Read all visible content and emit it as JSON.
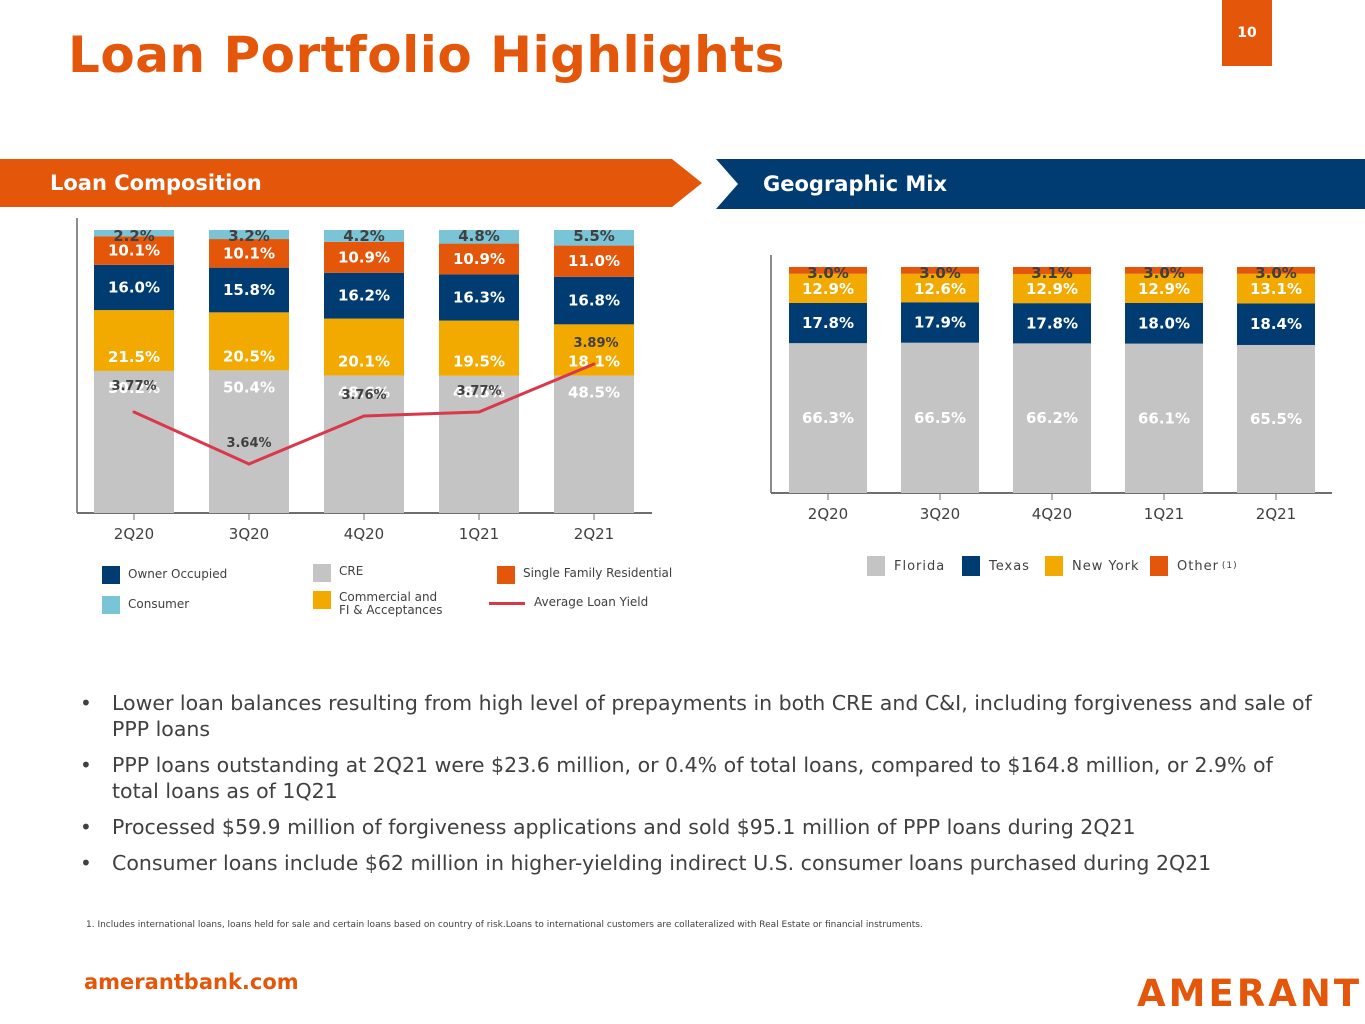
{
  "page": {
    "title": "Loan Portfolio Highlights",
    "page_number": "10",
    "website": "amerantbank.com",
    "logo_text": "AMERANT",
    "colors": {
      "brand_orange": "#E4570B",
      "brand_navy": "#003C71",
      "cre_gray": "#C4C4C4",
      "commercial_gold": "#F2A900",
      "consumer_blue": "#7AC4D7",
      "yield_red": "#D9384B"
    }
  },
  "sections": {
    "left_title": "Loan Composition",
    "right_title": "Geographic Mix"
  },
  "loan_legend": [
    {
      "label": "Owner Occupied",
      "color": "#003C71",
      "kind": "swatch"
    },
    {
      "label": "CRE",
      "color": "#C4C4C4",
      "kind": "swatch"
    },
    {
      "label": "Single Family Residential",
      "color": "#E4570B",
      "kind": "swatch"
    },
    {
      "label": "Consumer",
      "color": "#7AC4D7",
      "kind": "swatch"
    },
    {
      "label": "Commercial and FI & Acceptances",
      "color": "#F2A900",
      "kind": "swatch"
    },
    {
      "label": "Average Loan Yield",
      "color": "#D9384B",
      "kind": "line"
    }
  ],
  "geo_legend": [
    {
      "label": "Florida",
      "color": "#C4C4C4"
    },
    {
      "label": "Texas",
      "color": "#003C71"
    },
    {
      "label": "New York",
      "color": "#F2A900"
    },
    {
      "label": "Other",
      "color": "#E4570B",
      "note": "(1)"
    }
  ],
  "chart_data": [
    {
      "type": "bar",
      "stacked": true,
      "title": "Loan Composition",
      "categories": [
        "2Q20",
        "3Q20",
        "4Q20",
        "1Q21",
        "2Q21"
      ],
      "xlabel": "",
      "ylabel": "",
      "ylim": [
        0,
        100
      ],
      "grid": false,
      "series": [
        {
          "name": "CRE",
          "color": "#C4C4C4",
          "label_color": "#FFFFFF",
          "values": [
            50.2,
            50.4,
            48.6,
            48.5,
            48.5
          ],
          "labels": [
            "50.2%",
            "50.4%",
            "48.6%",
            "48.5%",
            "48.5%"
          ]
        },
        {
          "name": "Commercial and FI & Acceptances",
          "color": "#F2A900",
          "label_color": "#FFFFFF",
          "values": [
            21.5,
            20.5,
            20.1,
            19.5,
            18.1
          ],
          "labels": [
            "21.5%",
            "20.5%",
            "20.1%",
            "19.5%",
            "18.1%"
          ]
        },
        {
          "name": "Owner Occupied",
          "color": "#003C71",
          "label_color": "#FFFFFF",
          "values": [
            16.0,
            15.8,
            16.2,
            16.3,
            16.8
          ],
          "labels": [
            "16.0%",
            "15.8%",
            "16.2%",
            "16.3%",
            "16.8%"
          ]
        },
        {
          "name": "Single Family Residential",
          "color": "#E4570B",
          "label_color": "#FFFFFF",
          "values": [
            10.1,
            10.1,
            10.9,
            10.9,
            11.0
          ],
          "labels": [
            "10.1%",
            "10.1%",
            "10.9%",
            "10.9%",
            "11.0%"
          ]
        },
        {
          "name": "Consumer",
          "color": "#7AC4D7",
          "label_color": "#404040",
          "values": [
            2.2,
            3.2,
            4.2,
            4.8,
            5.5
          ],
          "labels": [
            "2.2%",
            "3.2%",
            "4.2%",
            "4.8%",
            "5.5%"
          ]
        }
      ],
      "line_series": {
        "name": "Average Loan Yield",
        "color": "#D9384B",
        "values": [
          3.77,
          3.64,
          3.76,
          3.77,
          3.89
        ],
        "labels": [
          "3.77%",
          "3.64%",
          "3.76%",
          "3.77%",
          "3.89%"
        ],
        "ylim": [
          3.5,
          3.95
        ]
      },
      "legend": "bottom"
    },
    {
      "type": "bar",
      "stacked": true,
      "title": "Geographic Mix",
      "categories": [
        "2Q20",
        "3Q20",
        "4Q20",
        "1Q21",
        "2Q21"
      ],
      "xlabel": "",
      "ylabel": "",
      "ylim": [
        0,
        100
      ],
      "grid": false,
      "series": [
        {
          "name": "Florida",
          "color": "#C4C4C4",
          "label_color": "#FFFFFF",
          "values": [
            66.3,
            66.5,
            66.2,
            66.1,
            65.5
          ],
          "labels": [
            "66.3%",
            "66.5%",
            "66.2%",
            "66.1%",
            "65.5%"
          ]
        },
        {
          "name": "Texas",
          "color": "#003C71",
          "label_color": "#FFFFFF",
          "values": [
            17.8,
            17.9,
            17.8,
            18.0,
            18.4
          ],
          "labels": [
            "17.8%",
            "17.9%",
            "17.8%",
            "18.0%",
            "18.4%"
          ]
        },
        {
          "name": "New York",
          "color": "#F2A900",
          "label_color": "#FFFFFF",
          "values": [
            12.9,
            12.6,
            12.9,
            12.9,
            13.1
          ],
          "labels": [
            "12.9%",
            "12.6%",
            "12.9%",
            "12.9%",
            "13.1%"
          ]
        },
        {
          "name": "Other",
          "color": "#E4570B",
          "label_color": "#404040",
          "values": [
            3.0,
            3.0,
            3.1,
            3.0,
            3.0
          ],
          "labels": [
            "3.0%",
            "3.0%",
            "3.1%",
            "3.0%",
            "3.0%"
          ]
        }
      ],
      "legend": "bottom"
    }
  ],
  "bullets": [
    "Lower loan balances resulting from high level of prepayments in both CRE and C&I, including forgiveness and sale of PPP loans",
    "PPP loans outstanding at 2Q21 were $23.6 million, or 0.4% of total loans, compared to $164.8 million, or 2.9% of total loans as of 1Q21",
    "Processed $59.9 million of forgiveness applications and sold $95.1 million of PPP loans during 2Q21",
    "Consumer loans include $62 million in higher-yielding indirect U.S. consumer loans purchased during 2Q21"
  ],
  "footnote": "1.    Includes international loans, loans held for sale and certain loans based on country of risk.Loans to international customers are collateralized with Real Estate or financial instruments."
}
